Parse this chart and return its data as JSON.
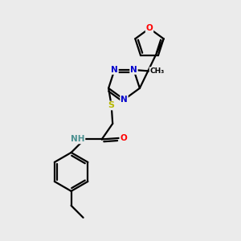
{
  "bg_color": "#ebebeb",
  "atom_colors": {
    "C": "#000000",
    "N": "#0000cc",
    "O": "#ff0000",
    "S": "#b8b800",
    "H": "#4a9090"
  },
  "bond_color": "#000000",
  "bond_width": 1.6
}
